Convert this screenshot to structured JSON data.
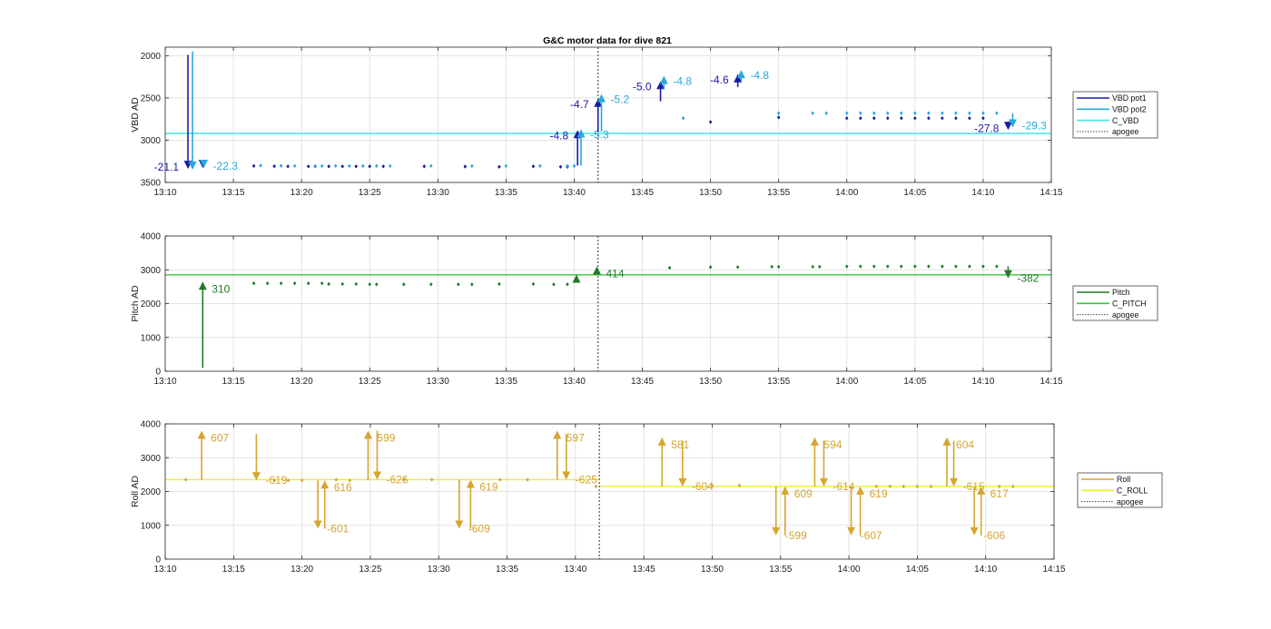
{
  "title": "G&C motor data for dive 821",
  "colors": {
    "vbd_pot1": "#1a1aa6",
    "vbd_pot2": "#29a8dc",
    "c_vbd": "#3ee6e6",
    "pitch": "#237a2a",
    "c_pitch": "#34c934",
    "roll": "#d4a531",
    "c_roll": "#ecec3a",
    "apogee": "#555555",
    "grid": "#e3e3e3",
    "axis": "#262626"
  },
  "chart_data": [
    {
      "type": "scatter",
      "name": "vbd",
      "ylabel": "VBD AD",
      "xlabel": "",
      "xlim": [
        "13:10",
        "14:15"
      ],
      "ylim": [
        3500,
        1900
      ],
      "y_reversed": true,
      "yticks": [
        2000,
        2500,
        3000,
        3500
      ],
      "xticks": [
        "13:10",
        "13:15",
        "13:20",
        "13:25",
        "13:30",
        "13:35",
        "13:40",
        "13:45",
        "13:50",
        "13:55",
        "14:00",
        "14:05",
        "14:10",
        "14:15"
      ],
      "grid": true,
      "legend_position": "right",
      "legend": [
        {
          "label": "VBD pot1",
          "kind": "line",
          "color": "#1a1aa6"
        },
        {
          "label": "VBD pot2",
          "kind": "line",
          "color": "#29a8dc"
        },
        {
          "label": "C_VBD",
          "kind": "line",
          "color": "#3ee6e6"
        },
        {
          "label": "apogee",
          "kind": "dotted",
          "color": "#555555"
        }
      ],
      "hlines": [
        {
          "series": "C_VBD",
          "y": 2920,
          "color": "#3ee6e6"
        }
      ],
      "apogee_x": "13:41:45",
      "series": [
        {
          "name": "VBD pot1",
          "color": "#1a1aa6",
          "x": [
            "13:16:30",
            "13:18:00",
            "13:19:00",
            "13:20:30",
            "13:21:00",
            "13:22:00",
            "13:23:00",
            "13:24:00",
            "13:25:00",
            "13:26:00",
            "13:29:00",
            "13:32:00",
            "13:34:30",
            "13:37:00",
            "13:39:00",
            "13:39:30",
            "13:50:00",
            "13:55:00",
            "14:00:00",
            "14:01:00",
            "14:02:00",
            "14:03:00",
            "14:04:00",
            "14:05:00",
            "14:06:00",
            "14:07:00",
            "14:08:00",
            "14:09:00",
            "14:10:00"
          ],
          "y": [
            3305,
            3308,
            3310,
            3310,
            3310,
            3310,
            3310,
            3310,
            3310,
            3310,
            3310,
            3312,
            3315,
            3310,
            3315,
            3315,
            2785,
            2730,
            2740,
            2740,
            2740,
            2740,
            2740,
            2740,
            2740,
            2740,
            2740,
            2740,
            2740
          ]
        },
        {
          "name": "VBD pot2",
          "color": "#29a8dc",
          "x": [
            "13:17:00",
            "13:18:30",
            "13:19:30",
            "13:21:00",
            "13:21:30",
            "13:22:30",
            "13:23:30",
            "13:24:30",
            "13:25:30",
            "13:26:30",
            "13:29:30",
            "13:32:30",
            "13:35:00",
            "13:37:30",
            "13:39:30",
            "13:40:00",
            "13:48:00",
            "13:55:00",
            "13:57:30",
            "13:58:30",
            "14:00:00",
            "14:01:00",
            "14:02:00",
            "14:03:00",
            "14:04:00",
            "14:05:00",
            "14:06:00",
            "14:07:00",
            "14:08:00",
            "14:09:00",
            "14:10:00",
            "14:11:00"
          ],
          "y": [
            3300,
            3303,
            3305,
            3305,
            3305,
            3305,
            3305,
            3305,
            3305,
            3305,
            3305,
            3306,
            3305,
            3305,
            3305,
            3305,
            2740,
            2680,
            2680,
            2680,
            2680,
            2680,
            2680,
            2680,
            2680,
            2680,
            2680,
            2680,
            2680,
            2680,
            2680,
            2680
          ]
        }
      ],
      "moves": [
        {
          "series": "VBD pot1",
          "x": "13:11:40",
          "y0": 1990,
          "y1": 3340,
          "label": "-21.1",
          "label_side": "left"
        },
        {
          "series": "VBD pot2",
          "x": "13:12:00",
          "y0": 1950,
          "y1": 3350,
          "label": "",
          "label_side": "right"
        },
        {
          "series": "VBD pot1",
          "x": "13:12:45",
          "y0": 3310,
          "y1": 3330,
          "label": "",
          "label_side": "right"
        },
        {
          "series": "VBD pot2",
          "x": "13:12:50",
          "y0": 3320,
          "y1": 3330,
          "label": "-22.3",
          "label_side": "right"
        },
        {
          "series": "VBD pot1",
          "x": "13:40:15",
          "y0": 3300,
          "y1": 2880,
          "label": "-4.8",
          "label_side": "left"
        },
        {
          "series": "VBD pot2",
          "x": "13:40:30",
          "y0": 3300,
          "y1": 2870,
          "label": "-5.3",
          "label_side": "right"
        },
        {
          "series": "VBD pot1",
          "x": "13:41:45",
          "y0": 2900,
          "y1": 2510,
          "label": "-4.7",
          "label_side": "left"
        },
        {
          "series": "VBD pot2",
          "x": "13:42:00",
          "y0": 2900,
          "y1": 2455,
          "label": "-5.2",
          "label_side": "right"
        },
        {
          "series": "VBD pot1",
          "x": "13:46:20",
          "y0": 2540,
          "y1": 2300,
          "label": "-5.0",
          "label_side": "left"
        },
        {
          "series": "VBD pot2",
          "x": "13:46:35",
          "y0": 2400,
          "y1": 2240,
          "label": "-4.8",
          "label_side": "right"
        },
        {
          "series": "VBD pot1",
          "x": "13:52:00",
          "y0": 2370,
          "y1": 2220,
          "label": "-4.6",
          "label_side": "left"
        },
        {
          "series": "VBD pot2",
          "x": "13:52:15",
          "y0": 2300,
          "y1": 2170,
          "label": "-4.8",
          "label_side": "right"
        },
        {
          "series": "VBD pot1",
          "x": "14:11:50",
          "y0": 2780,
          "y1": 2880,
          "label": "-27.8",
          "label_side": "left"
        },
        {
          "series": "VBD pot2",
          "x": "14:12:10",
          "y0": 2680,
          "y1": 2850,
          "label": "-29.3",
          "label_side": "right"
        }
      ]
    },
    {
      "type": "scatter",
      "name": "pitch",
      "ylabel": "Pitch AD",
      "xlabel": "",
      "xlim": [
        "13:10",
        "14:15"
      ],
      "ylim": [
        0,
        4000
      ],
      "yticks": [
        0,
        1000,
        2000,
        3000,
        4000
      ],
      "xticks": [
        "13:10",
        "13:15",
        "13:20",
        "13:25",
        "13:30",
        "13:35",
        "13:40",
        "13:45",
        "13:50",
        "13:55",
        "14:00",
        "14:05",
        "14:10",
        "14:15"
      ],
      "grid": true,
      "legend_position": "right",
      "legend": [
        {
          "label": "Pitch",
          "kind": "line",
          "color": "#237a2a"
        },
        {
          "label": "C_PITCH",
          "kind": "line",
          "color": "#34c934"
        },
        {
          "label": "apogee",
          "kind": "dotted",
          "color": "#555555"
        }
      ],
      "hlines": [
        {
          "series": "C_PITCH",
          "y": 2850,
          "color": "#34c934"
        }
      ],
      "apogee_x": "13:41:45",
      "series": [
        {
          "name": "Pitch",
          "color": "#237a2a",
          "x": [
            "13:16:30",
            "13:17:30",
            "13:18:30",
            "13:19:30",
            "13:20:30",
            "13:21:30",
            "13:22:00",
            "13:23:00",
            "13:24:00",
            "13:25:00",
            "13:25:30",
            "13:27:30",
            "13:29:30",
            "13:31:30",
            "13:32:30",
            "13:34:30",
            "13:37:00",
            "13:38:30",
            "13:39:30",
            "13:47:00",
            "13:50:00",
            "13:52:00",
            "13:54:30",
            "13:55:00",
            "13:57:30",
            "13:58:00",
            "14:00:00",
            "14:01:00",
            "14:02:00",
            "14:03:00",
            "14:04:00",
            "14:05:00",
            "14:06:00",
            "14:07:00",
            "14:08:00",
            "14:09:00",
            "14:10:00",
            "14:11:00"
          ],
          "y": [
            2600,
            2600,
            2600,
            2600,
            2600,
            2600,
            2580,
            2580,
            2580,
            2570,
            2570,
            2570,
            2570,
            2570,
            2570,
            2580,
            2580,
            2570,
            2570,
            3060,
            3080,
            3080,
            3090,
            3090,
            3090,
            3090,
            3100,
            3100,
            3100,
            3100,
            3100,
            3100,
            3100,
            3100,
            3100,
            3100,
            3100,
            3100
          ]
        }
      ],
      "moves": [
        {
          "series": "Pitch",
          "x": "13:12:45",
          "y0": 100,
          "y1": 2650,
          "label": "310",
          "label_side": "right"
        },
        {
          "series": "Pitch",
          "x": "13:40:10",
          "y0": 2620,
          "y1": 2860,
          "label": "",
          "label_side": "right"
        },
        {
          "series": "Pitch",
          "x": "13:41:40",
          "y0": 2930,
          "y1": 3100,
          "label": "414",
          "label_side": "right"
        },
        {
          "series": "Pitch",
          "x": "14:11:50",
          "y0": 3100,
          "y1": 2750,
          "label": "-382",
          "label_side": "right"
        }
      ]
    },
    {
      "type": "scatter",
      "name": "roll",
      "ylabel": "Roll AD",
      "xlabel": "",
      "xlim": [
        "13:10",
        "14:15"
      ],
      "ylim": [
        0,
        4000
      ],
      "yticks": [
        0,
        1000,
        2000,
        3000,
        4000
      ],
      "xticks": [
        "13:10",
        "13:15",
        "13:20",
        "13:25",
        "13:30",
        "13:35",
        "13:40",
        "13:45",
        "13:50",
        "13:55",
        "14:00",
        "14:05",
        "14:10",
        "14:15"
      ],
      "grid": true,
      "legend_position": "right",
      "legend": [
        {
          "label": "Roll",
          "kind": "line",
          "color": "#d4a531"
        },
        {
          "label": "C_ROLL",
          "kind": "line",
          "color": "#ecec3a"
        },
        {
          "label": "apogee",
          "kind": "dotted",
          "color": "#555555"
        }
      ],
      "hlines": [
        {
          "series": "C_ROLL",
          "y": 2350,
          "x0": "13:10",
          "x1": "13:41:45",
          "color": "#ecec3a"
        },
        {
          "series": "C_ROLL",
          "y": 2150,
          "x0": "13:41:45",
          "x1": "14:15",
          "color": "#ecec3a"
        }
      ],
      "apogee_x": "13:41:45",
      "series": [
        {
          "name": "Roll",
          "color": "#d4a531",
          "x": [
            "13:11:30",
            "13:18:00",
            "13:19:00",
            "13:20:00",
            "13:22:30",
            "13:23:30",
            "13:27:30",
            "13:29:30",
            "13:34:30",
            "13:36:30",
            "13:41:30",
            "13:50:00",
            "13:52:00",
            "14:02:00",
            "14:03:00",
            "14:04:00",
            "14:05:00",
            "14:06:00",
            "14:11:00",
            "14:12:00"
          ],
          "y": [
            2350,
            2330,
            2330,
            2330,
            2350,
            2330,
            2360,
            2350,
            2350,
            2350,
            2150,
            2180,
            2180,
            2150,
            2150,
            2150,
            2150,
            2150,
            2150,
            2150
          ]
        }
      ],
      "moves": [
        {
          "series": "Roll",
          "x": "13:12:40",
          "y0": 2350,
          "y1": 3800,
          "label": "607",
          "label_side": "right"
        },
        {
          "series": "Roll",
          "x": "13:16:40",
          "y0": 3700,
          "y1": 2330,
          "label": "-619",
          "label_side": "right"
        },
        {
          "series": "Roll",
          "x": "13:21:10",
          "y0": 2330,
          "y1": 900,
          "label": "-601",
          "label_side": "right"
        },
        {
          "series": "Roll",
          "x": "13:21:40",
          "y0": 900,
          "y1": 2330,
          "label": "616",
          "label_side": "right"
        },
        {
          "series": "Roll",
          "x": "13:24:50",
          "y0": 2330,
          "y1": 3800,
          "label": "599",
          "label_side": "right"
        },
        {
          "series": "Roll",
          "x": "13:25:30",
          "y0": 3800,
          "y1": 2350,
          "label": "-626",
          "label_side": "right"
        },
        {
          "series": "Roll",
          "x": "13:31:30",
          "y0": 2350,
          "y1": 900,
          "label": "-609",
          "label_side": "right"
        },
        {
          "series": "Roll",
          "x": "13:32:20",
          "y0": 900,
          "y1": 2350,
          "label": "619",
          "label_side": "right"
        },
        {
          "series": "Roll",
          "x": "13:38:40",
          "y0": 2350,
          "y1": 3800,
          "label": "597",
          "label_side": "right"
        },
        {
          "series": "Roll",
          "x": "13:39:20",
          "y0": 3700,
          "y1": 2350,
          "label": "-625",
          "label_side": "right"
        },
        {
          "series": "Roll",
          "x": "13:46:20",
          "y0": 2150,
          "y1": 3600,
          "label": "581",
          "label_side": "right"
        },
        {
          "series": "Roll",
          "x": "13:47:50",
          "y0": 3500,
          "y1": 2150,
          "label": "-604",
          "label_side": "right"
        },
        {
          "series": "Roll",
          "x": "13:54:40",
          "y0": 2150,
          "y1": 700,
          "label": "-599",
          "label_side": "right"
        },
        {
          "series": "Roll",
          "x": "13:55:20",
          "y0": 700,
          "y1": 2150,
          "label": "609",
          "label_side": "right"
        },
        {
          "series": "Roll",
          "x": "13:57:30",
          "y0": 2150,
          "y1": 3600,
          "label": "594",
          "label_side": "right"
        },
        {
          "series": "Roll",
          "x": "13:58:10",
          "y0": 3500,
          "y1": 2150,
          "label": "-614",
          "label_side": "right"
        },
        {
          "series": "Roll",
          "x": "14:00:10",
          "y0": 2150,
          "y1": 700,
          "label": "-607",
          "label_side": "right"
        },
        {
          "series": "Roll",
          "x": "14:00:50",
          "y0": 700,
          "y1": 2150,
          "label": "619",
          "label_side": "right"
        },
        {
          "series": "Roll",
          "x": "14:07:10",
          "y0": 2150,
          "y1": 3600,
          "label": "604",
          "label_side": "right"
        },
        {
          "series": "Roll",
          "x": "14:07:40",
          "y0": 3500,
          "y1": 2150,
          "label": "-615",
          "label_side": "right"
        },
        {
          "series": "Roll",
          "x": "14:09:10",
          "y0": 2150,
          "y1": 700,
          "label": "-606",
          "label_side": "right"
        },
        {
          "series": "Roll",
          "x": "14:09:40",
          "y0": 700,
          "y1": 2150,
          "label": "617",
          "label_side": "right"
        }
      ]
    }
  ]
}
